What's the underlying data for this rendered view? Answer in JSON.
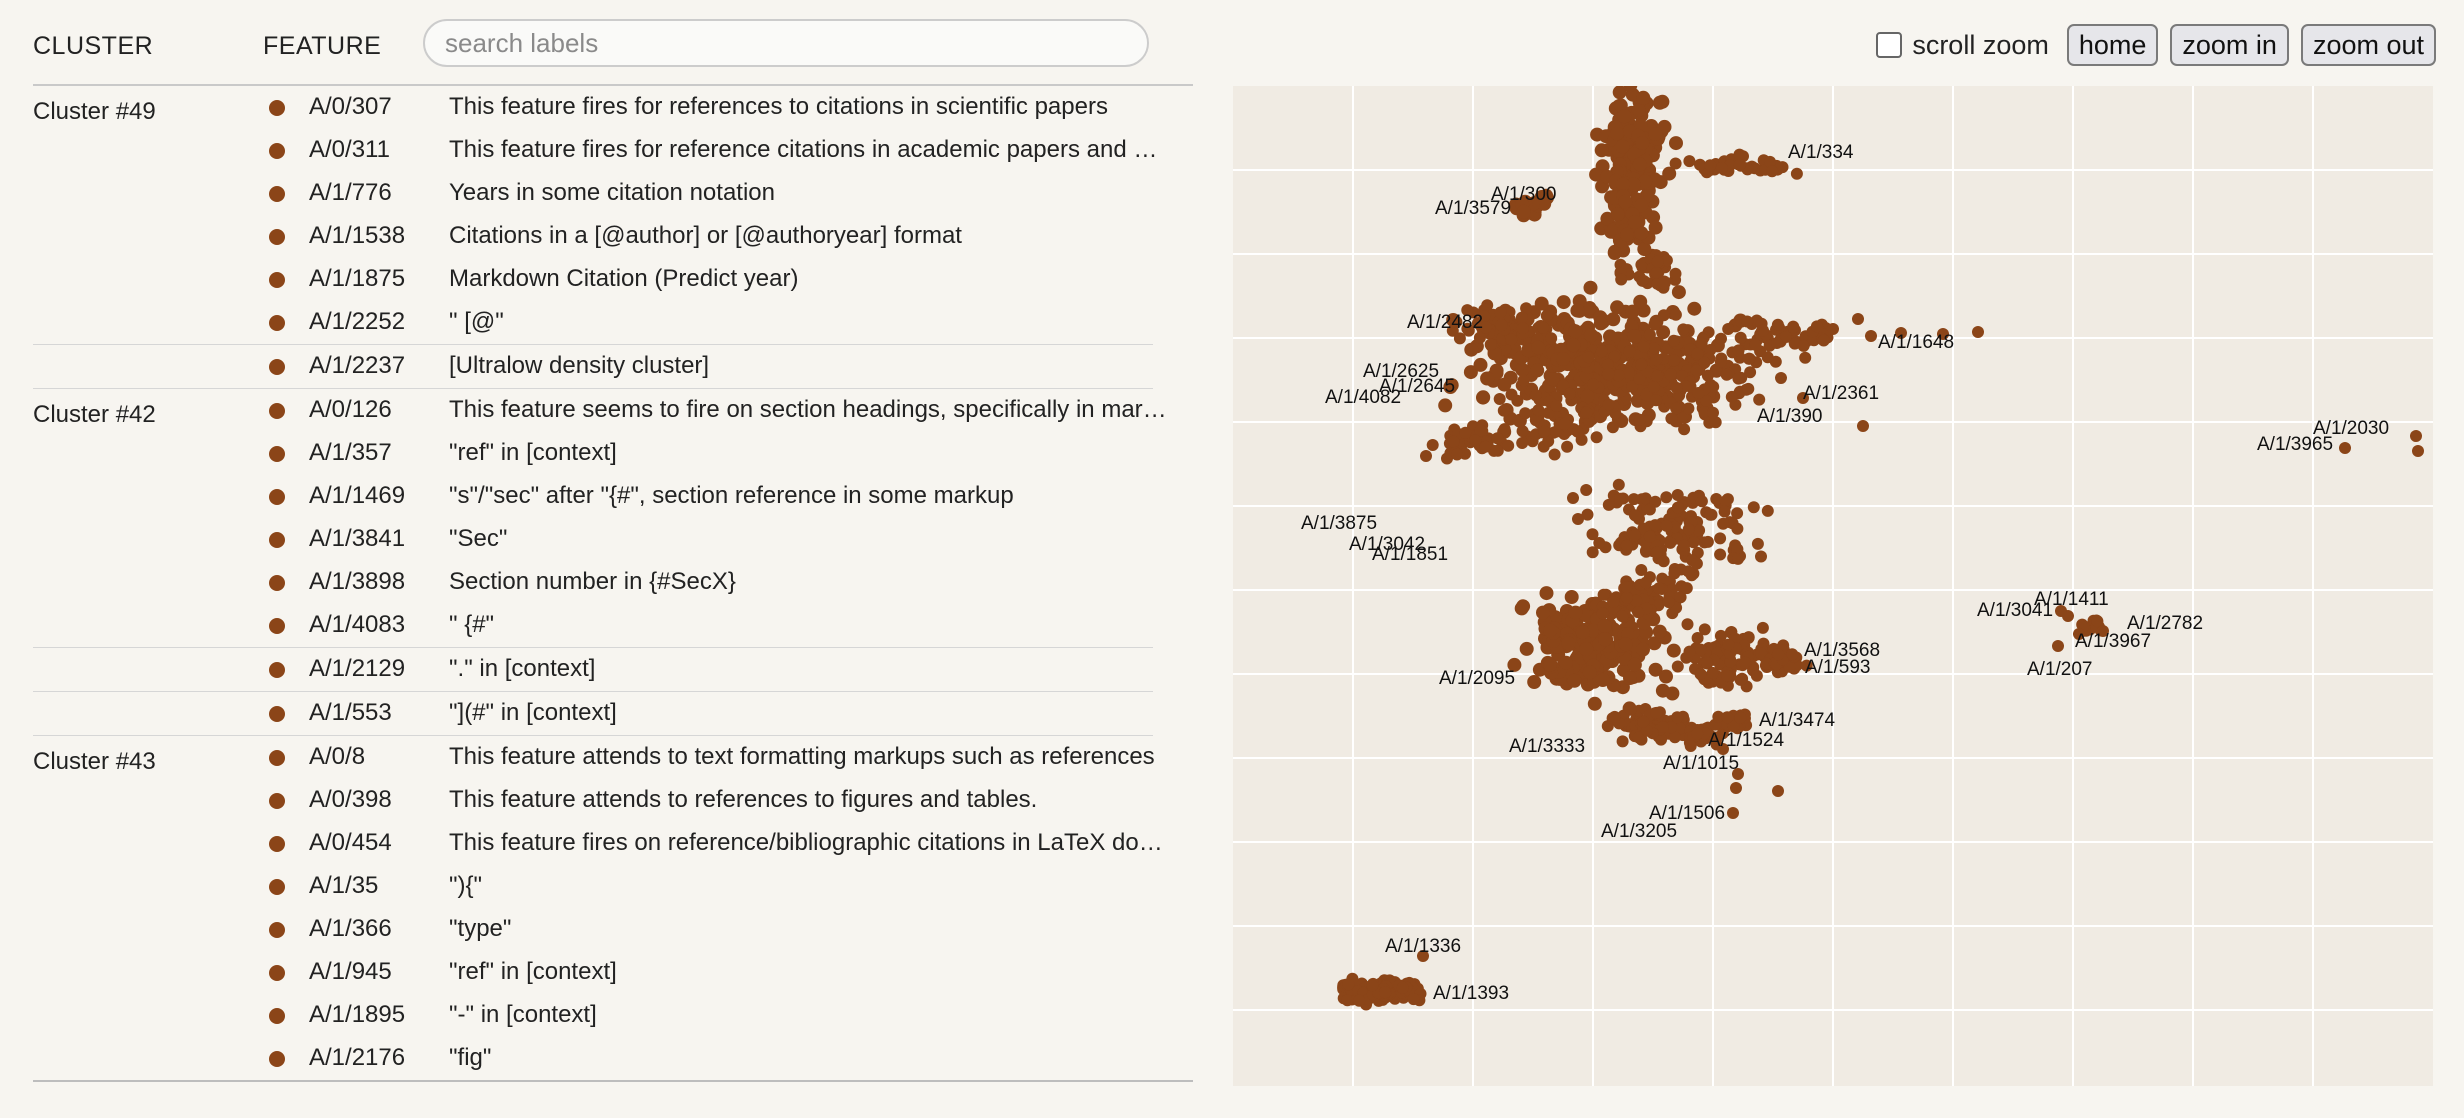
{
  "header": {
    "cluster_col": "CLUSTER",
    "feature_col": "FEATURE",
    "search_placeholder": "search labels"
  },
  "controls": {
    "scroll_zoom_label": "scroll zoom",
    "scroll_zoom_checked": false,
    "home_label": "home",
    "zoom_in_label": "zoom in",
    "zoom_out_label": "zoom out"
  },
  "colors": {
    "point": "#8b4518",
    "map_bg": "#f0ebe3",
    "grid": "#ffffff"
  },
  "groups": [
    {
      "name": "Cluster #49",
      "features": [
        {
          "id": "A/0/307",
          "desc": "This feature fires for references to citations in scientific papers"
        },
        {
          "id": "A/0/311",
          "desc": "This feature fires for reference citations in academic papers and articles"
        },
        {
          "id": "A/1/776",
          "desc": "Years in some citation notation"
        },
        {
          "id": "A/1/1538",
          "desc": "Citations in a [@author] or [@authoryear] format"
        },
        {
          "id": "A/1/1875",
          "desc": "Markdown Citation (Predict year)"
        },
        {
          "id": "A/1/2252",
          "desc": "\" [@\""
        }
      ]
    },
    {
      "name": "",
      "features": [
        {
          "id": "A/1/2237",
          "desc": "[Ultralow density cluster]"
        }
      ]
    },
    {
      "name": "Cluster #42",
      "features": [
        {
          "id": "A/0/126",
          "desc": "This feature seems to fire on section headings, specifically in markup"
        },
        {
          "id": "A/1/357",
          "desc": "\"ref\" in [context]"
        },
        {
          "id": "A/1/1469",
          "desc": "\"s\"/\"sec\" after \"{#\", section reference in some markup"
        },
        {
          "id": "A/1/3841",
          "desc": "\"Sec\""
        },
        {
          "id": "A/1/3898",
          "desc": "Section number in {#SecX}"
        },
        {
          "id": "A/1/4083",
          "desc": "\" {#\""
        }
      ]
    },
    {
      "name": "",
      "features": [
        {
          "id": "A/1/2129",
          "desc": "\".\" in [context]"
        }
      ]
    },
    {
      "name": "",
      "features": [
        {
          "id": "A/1/553",
          "desc": "\"](#\" in [context]"
        }
      ]
    },
    {
      "name": "Cluster #43",
      "features": [
        {
          "id": "A/0/8",
          "desc": "This feature attends to text formatting markups such as references"
        },
        {
          "id": "A/0/398",
          "desc": "This feature attends to references to figures and tables."
        },
        {
          "id": "A/0/454",
          "desc": "This feature fires on reference/bibliographic citations in LaTeX documents"
        },
        {
          "id": "A/1/35",
          "desc": "\"){\""
        },
        {
          "id": "A/1/366",
          "desc": "\"type\""
        },
        {
          "id": "A/1/945",
          "desc": "\"ref\" in [context]"
        },
        {
          "id": "A/1/1895",
          "desc": "\"-\" in [context]"
        },
        {
          "id": "A/1/2176",
          "desc": "\"fig\""
        }
      ]
    }
  ],
  "map_labels": [
    "A/1/334",
    "A/1/300",
    "A/1/3579",
    "A/1/2482",
    "A/1/1648",
    "A/1/2625",
    "A/1/2645",
    "A/1/4082",
    "A/1/2361",
    "A/1/390",
    "A/1/2030",
    "A/1/3965",
    "A/1/3875",
    "A/1/3042",
    "A/1/1851",
    "A/1/1411",
    "A/1/3041",
    "A/1/2782",
    "A/1/3967",
    "A/1/207",
    "A/1/3568",
    "A/1/593",
    "A/1/2095",
    "A/1/3474",
    "A/1/1524",
    "A/1/3333",
    "A/1/1015",
    "A/1/1506",
    "A/1/3205",
    "A/1/1336",
    "A/1/1393"
  ]
}
